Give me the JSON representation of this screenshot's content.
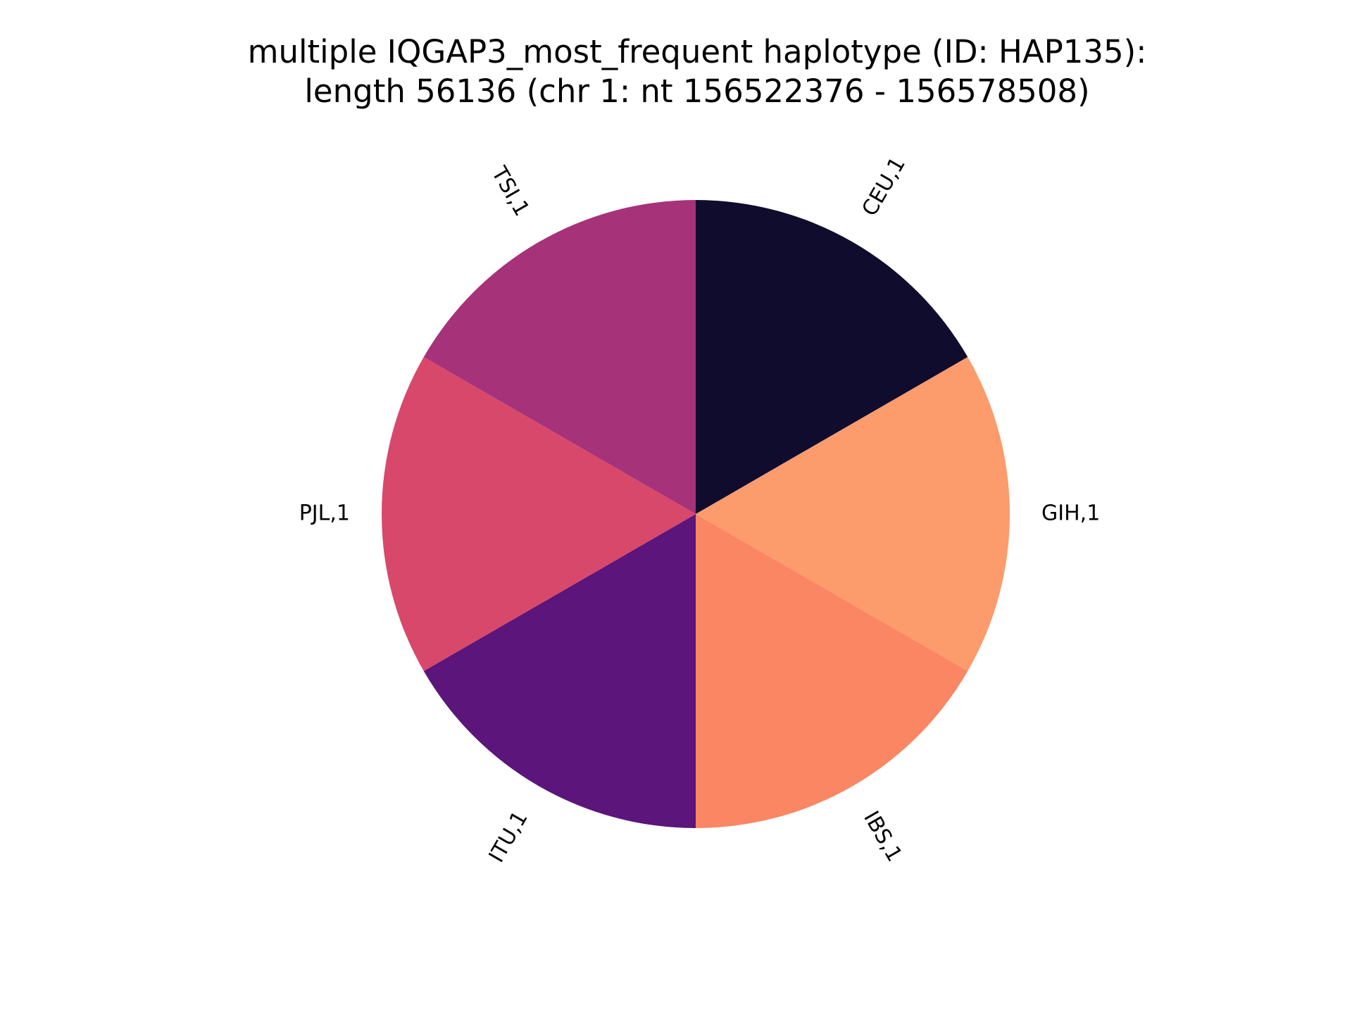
{
  "chart_data": {
    "type": "pie",
    "title_lines": [
      "multiple IQGAP3_most_frequent haplotype (ID: HAP135):",
      "length 56136 (chr 1: nt 156522376 - 156578508)"
    ],
    "slices": [
      {
        "label": "CEU,1",
        "value": 1,
        "color": "#100c2e"
      },
      {
        "label": "GIH,1",
        "value": 1,
        "color": "#fc9b6b"
      },
      {
        "label": "IBS,1",
        "value": 1,
        "color": "#fa8664"
      },
      {
        "label": "ITU,1",
        "value": 1,
        "color": "#5b157b"
      },
      {
        "label": "PJL,1",
        "value": 1,
        "color": "#d8486b"
      },
      {
        "label": "TSI,1",
        "value": 1,
        "color": "#a63279"
      }
    ]
  }
}
